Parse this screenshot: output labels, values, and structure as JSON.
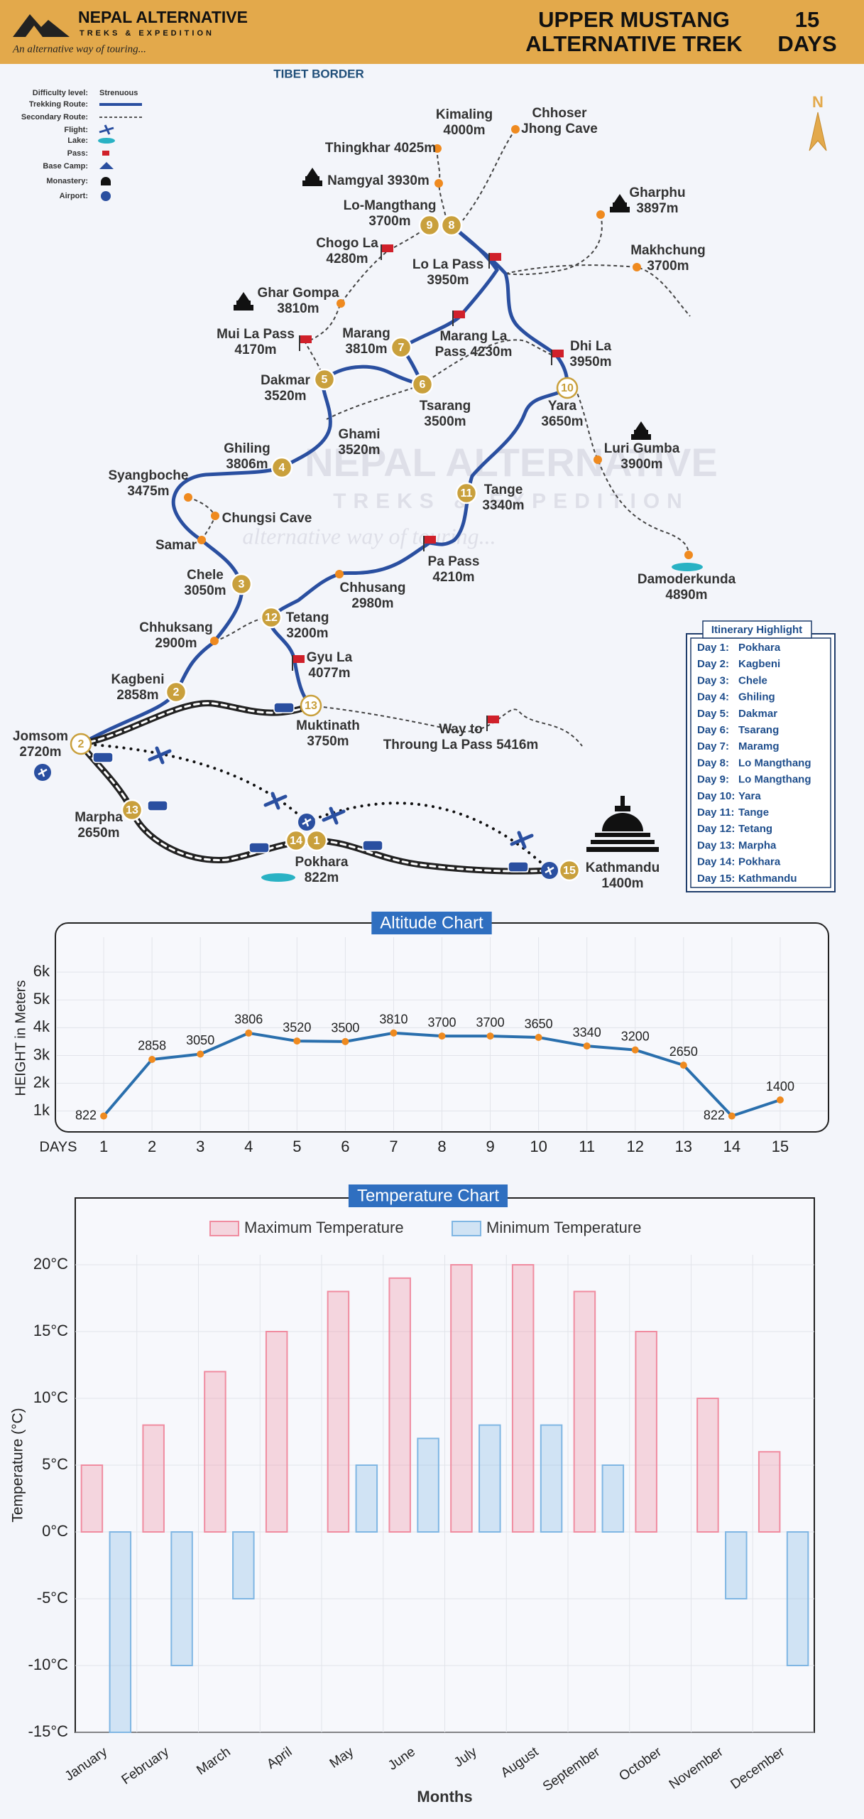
{
  "header": {
    "brand": "NEPAL ALTERNATIVE",
    "brand_sub": "TREKS & EXPEDITION",
    "tagline": "An alternative way of touring...",
    "title": [
      "UPPER MUSTANG",
      "ALTERNATIVE TREK"
    ],
    "days": [
      "15",
      "DAYS"
    ]
  },
  "map": {
    "border_label": "TIBET BORDER",
    "north": "N",
    "legend": {
      "labels": [
        "Difficulty level:",
        "Trekking Route:",
        "Secondary Route:",
        "Flight:",
        "Lake:",
        "Pass:",
        "Base Camp:",
        "Monastery:",
        "Airport:"
      ],
      "difficulty": "Strenuous"
    },
    "watermark": [
      "NEPAL ALTERNATIVE",
      "TREKS & EXPEDITION",
      "alternative way of touring..."
    ],
    "places": [
      {
        "lines": [
          "Kimaling",
          "4000m"
        ]
      },
      {
        "lines": [
          "Chhoser",
          "Jhong Cave"
        ]
      },
      {
        "lines": [
          "Thingkhar 4025m"
        ]
      },
      {
        "lines": [
          "Namgyal 3930m"
        ]
      },
      {
        "lines": [
          "Lo-Mangthang",
          "3700m"
        ]
      },
      {
        "lines": [
          "Gharphu",
          "3897m"
        ]
      },
      {
        "lines": [
          "Makhchung",
          "3700m"
        ]
      },
      {
        "lines": [
          "Chogo La",
          "4280m"
        ]
      },
      {
        "lines": [
          "Lo La Pass",
          "3950m"
        ]
      },
      {
        "lines": [
          "Ghar Gompa",
          "3810m"
        ]
      },
      {
        "lines": [
          "Mui La Pass",
          "4170m"
        ]
      },
      {
        "lines": [
          "Marang",
          "3810m"
        ]
      },
      {
        "lines": [
          "Marang La",
          "Pass 4230m"
        ]
      },
      {
        "lines": [
          "Dhi La",
          "3950m"
        ]
      },
      {
        "lines": [
          "Dakmar",
          "3520m"
        ]
      },
      {
        "lines": [
          "Tsarang",
          "3500m"
        ]
      },
      {
        "lines": [
          "Yara",
          "3650m"
        ]
      },
      {
        "lines": [
          "Ghami",
          "3520m"
        ]
      },
      {
        "lines": [
          "Ghiling",
          "3806m"
        ]
      },
      {
        "lines": [
          "Luri Gumba",
          "3900m"
        ]
      },
      {
        "lines": [
          "Syangboche",
          "3475m"
        ]
      },
      {
        "lines": [
          "Tange",
          "3340m"
        ]
      },
      {
        "lines": [
          "Chungsi Cave"
        ]
      },
      {
        "lines": [
          "Samar"
        ]
      },
      {
        "lines": [
          "Pa Pass",
          "4210m"
        ]
      },
      {
        "lines": [
          "Damoderkunda",
          "4890m"
        ]
      },
      {
        "lines": [
          "Chele",
          "3050m"
        ]
      },
      {
        "lines": [
          "Chhusang",
          "2980m"
        ]
      },
      {
        "lines": [
          "Tetang",
          "3200m"
        ]
      },
      {
        "lines": [
          "Chhuksang",
          "2900m"
        ]
      },
      {
        "lines": [
          "Gyu La",
          "4077m"
        ]
      },
      {
        "lines": [
          "Kagbeni",
          "2858m"
        ]
      },
      {
        "lines": [
          "Muktinath",
          "3750m"
        ]
      },
      {
        "lines": [
          "Way to",
          "Throung La Pass 5416m"
        ]
      },
      {
        "lines": [
          "Jomsom",
          "2720m"
        ]
      },
      {
        "lines": [
          "Marpha",
          "2650m"
        ]
      },
      {
        "lines": [
          "Pokhara",
          "822m"
        ]
      },
      {
        "lines": [
          "Kathmandu",
          "1400m"
        ]
      }
    ],
    "markers": [
      "1",
      "2",
      "2",
      "3",
      "4",
      "5",
      "6",
      "7",
      "8",
      "9",
      "10",
      "11",
      "12",
      "13",
      "13",
      "14",
      "15"
    ]
  },
  "itinerary": {
    "title": "Itinerary Highlight",
    "items": [
      {
        "day": "Day 1:",
        "place": "Pokhara"
      },
      {
        "day": "Day 2:",
        "place": "Kagbeni"
      },
      {
        "day": "Day 3:",
        "place": "Chele"
      },
      {
        "day": "Day 4:",
        "place": "Ghiling"
      },
      {
        "day": "Day 5:",
        "place": "Dakmar"
      },
      {
        "day": "Day 6:",
        "place": "Tsarang"
      },
      {
        "day": "Day 7:",
        "place": "Maramg"
      },
      {
        "day": "Day 8:",
        "place": "Lo Mangthang"
      },
      {
        "day": "Day 9:",
        "place": "Lo Mangthang"
      },
      {
        "day": "Day 10:",
        "place": "Yara"
      },
      {
        "day": "Day 11:",
        "place": "Tange"
      },
      {
        "day": "Day 12:",
        "place": "Tetang"
      },
      {
        "day": "Day 13:",
        "place": "Marpha"
      },
      {
        "day": "Day 14:",
        "place": "Pokhara"
      },
      {
        "day": "Day 15:",
        "place": "Kathmandu"
      }
    ]
  },
  "chart_data": [
    {
      "type": "line",
      "title": "Altitude Chart",
      "y_label": "HEIGHT in Meters",
      "x_label": "DAYS",
      "x": [
        1,
        2,
        3,
        4,
        5,
        6,
        7,
        8,
        9,
        10,
        11,
        12,
        13,
        14,
        15
      ],
      "values": [
        822,
        2858,
        3050,
        3806,
        3520,
        3500,
        3810,
        3700,
        3700,
        3650,
        3340,
        3200,
        2650,
        822,
        1400
      ],
      "color": "#2a6fad",
      "xlim": [
        0,
        16
      ],
      "xticks": [
        1,
        2,
        3,
        4,
        5,
        6,
        7,
        8,
        9,
        10,
        11,
        12,
        13,
        14,
        15
      ],
      "ylim": [
        250,
        7000
      ],
      "yticks": [
        {
          "value": 1000,
          "label": "1k"
        },
        {
          "value": 2000,
          "label": "2k"
        },
        {
          "value": 3000,
          "label": "3k"
        },
        {
          "value": 4000,
          "label": "4k"
        },
        {
          "value": 5000,
          "label": "5k"
        },
        {
          "value": 6000,
          "label": "6k"
        }
      ],
      "grid": true
    },
    {
      "type": "bar",
      "title": "Temperature Chart",
      "y_label": "Temperature (°C)",
      "x_label": "Months",
      "categories": [
        "January",
        "February",
        "March",
        "April",
        "May",
        "June",
        "July",
        "August",
        "September",
        "October",
        "November",
        "December"
      ],
      "series": [
        {
          "name": "Maximum Temperature",
          "color": "#f08ca0",
          "values": [
            5,
            8,
            12,
            15,
            18,
            19,
            20,
            20,
            18,
            15,
            10,
            6
          ]
        },
        {
          "name": "Minimum Temperature",
          "color": "#7fb6e3",
          "values": [
            -15,
            -10,
            -5,
            0,
            5,
            7,
            8,
            8,
            5,
            0,
            -5,
            -10
          ]
        }
      ],
      "ylim": [
        -15,
        25
      ],
      "yticks": [
        {
          "value": -15,
          "label": "-15°C"
        },
        {
          "value": -10,
          "label": "-10°C"
        },
        {
          "value": -5,
          "label": "-5°C"
        },
        {
          "value": 0,
          "label": "0°C"
        },
        {
          "value": 5,
          "label": "5°C"
        },
        {
          "value": 10,
          "label": "10°C"
        },
        {
          "value": 15,
          "label": "15°C"
        },
        {
          "value": 20,
          "label": "20°C"
        }
      ],
      "grid": true,
      "legend": "top"
    }
  ]
}
